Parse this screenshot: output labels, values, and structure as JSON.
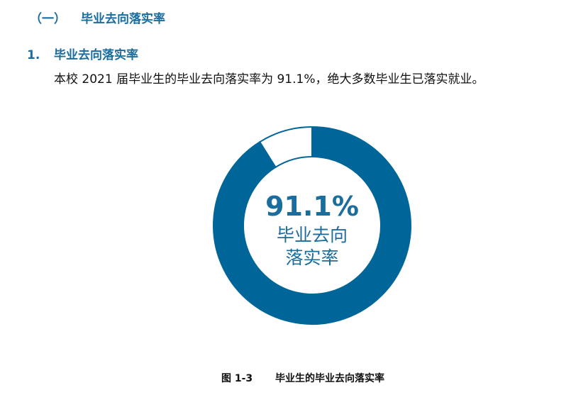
{
  "section": {
    "number": "（一）",
    "title": "毕业去向落实率"
  },
  "subsection": {
    "number": "1.",
    "title": "毕业去向落实率"
  },
  "paragraph": "本校 2021 届毕业生的毕业去向落实率为 91.1%，绝大多数毕业生已落实就业。",
  "chart_data": {
    "type": "pie",
    "variant": "donut",
    "values": [
      91.1,
      8.9
    ],
    "center_value": "91.1%",
    "center_label_line1": "毕业去向",
    "center_label_line2": "落实率",
    "colors": [
      "#006699",
      "#ffffff"
    ]
  },
  "caption": {
    "figure": "图 1-3",
    "title": "毕业生的毕业去向落实率"
  }
}
